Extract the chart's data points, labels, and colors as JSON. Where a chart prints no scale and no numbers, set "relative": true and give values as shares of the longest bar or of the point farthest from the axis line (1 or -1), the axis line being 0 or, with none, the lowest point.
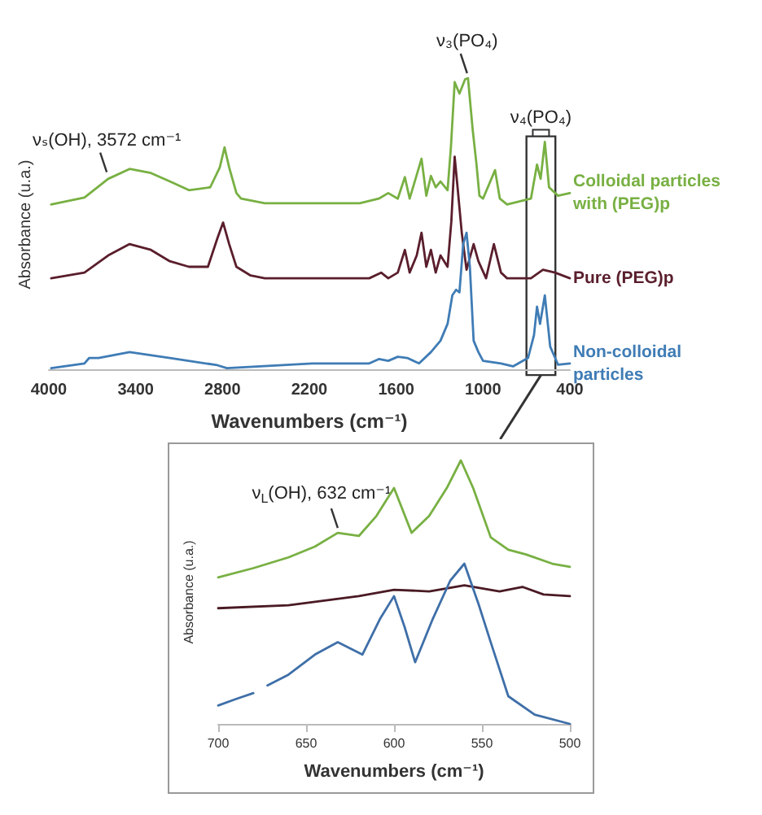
{
  "chart_data": [
    {
      "type": "line",
      "xlabel": "Wavenumbers (cm⁻¹)",
      "ylabel": "Absorbance (u.a.)",
      "relative": true,
      "xlim": [
        4000,
        400
      ],
      "xticks": [
        4000,
        3400,
        2800,
        2200,
        1600,
        1000,
        400
      ],
      "grid": false,
      "legend": false,
      "marker": "none",
      "annotations": [
        {
          "text": "νₛ(OH), 3572 cm⁻¹",
          "x": 3600,
          "y": 0.66
        },
        {
          "text": "ν₃(PO₄)",
          "x": 1110,
          "y": 1.0
        },
        "ν₄(PO₄)"
      ],
      "series": [
        {
          "name": "Colloidal particles with (PEG)p",
          "color": "#78b043",
          "x": [
            3984,
            3754,
            3590,
            3442,
            3295,
            3164,
            3032,
            2885,
            2819,
            2786,
            2754,
            2704,
            2672,
            2508,
            1852,
            1720,
            1655,
            1589,
            1540,
            1507,
            1425,
            1392,
            1360,
            1327,
            1294,
            1245,
            1222,
            1196,
            1163,
            1124,
            1104,
            1071,
            1045,
            1025,
            1000,
            917,
            884,
            834,
            669,
            627,
            602,
            573,
            544,
            482,
            400
          ],
          "values": [
            0.566,
            0.59,
            0.654,
            0.688,
            0.674,
            0.645,
            0.615,
            0.625,
            0.693,
            0.762,
            0.693,
            0.605,
            0.586,
            0.57,
            0.57,
            0.586,
            0.605,
            0.586,
            0.66,
            0.586,
            0.723,
            0.596,
            0.664,
            0.625,
            0.645,
            0.615,
            0.762,
            0.986,
            0.947,
            0.996,
            1.0,
            0.82,
            0.703,
            0.596,
            0.586,
            0.684,
            0.586,
            0.566,
            0.586,
            0.703,
            0.654,
            0.781,
            0.625,
            0.596,
            0.605
          ]
        },
        {
          "name": "Pure (PEG)p",
          "color": "#5a1e2c",
          "x": [
            3984,
            3754,
            3590,
            3442,
            3295,
            3164,
            3032,
            2901,
            2836,
            2796,
            2754,
            2704,
            2606,
            2508,
            1786,
            1704,
            1655,
            1589,
            1540,
            1507,
            1458,
            1425,
            1392,
            1360,
            1327,
            1294,
            1245,
            1219,
            1196,
            1176,
            1147,
            1114,
            1065,
            1032,
            979,
            925,
            876,
            834,
            669,
            586,
            503,
            400
          ],
          "values": [
            0.3125,
            0.332,
            0.391,
            0.43,
            0.41,
            0.371,
            0.352,
            0.352,
            0.449,
            0.504,
            0.43,
            0.352,
            0.322,
            0.3125,
            0.3125,
            0.332,
            0.3125,
            0.332,
            0.41,
            0.332,
            0.391,
            0.469,
            0.352,
            0.41,
            0.332,
            0.391,
            0.352,
            0.508,
            0.73,
            0.625,
            0.469,
            0.342,
            0.43,
            0.371,
            0.3125,
            0.43,
            0.332,
            0.3125,
            0.3125,
            0.342,
            0.332,
            0.3125
          ]
        },
        {
          "name": "Non-colloidal particles",
          "color": "#3f7cb5",
          "x": [
            3984,
            3754,
            3721,
            3656,
            3442,
            3164,
            2836,
            2770,
            2180,
            1786,
            1720,
            1655,
            1589,
            1524,
            1442,
            1360,
            1294,
            1245,
            1212,
            1186,
            1163,
            1137,
            1114,
            1091,
            1065,
            1032,
            1000,
            876,
            793,
            689,
            648,
            627,
            606,
            573,
            536,
            482,
            400
          ],
          "values": [
            0.004,
            0.02,
            0.039,
            0.039,
            0.059,
            0.039,
            0.014,
            0.004,
            0.02,
            0.02,
            0.035,
            0.029,
            0.043,
            0.039,
            0.02,
            0.059,
            0.098,
            0.156,
            0.254,
            0.273,
            0.264,
            0.43,
            0.469,
            0.352,
            0.098,
            0.059,
            0.029,
            0.02,
            0.01,
            0.039,
            0.117,
            0.215,
            0.156,
            0.254,
            0.078,
            0.016,
            0.02
          ]
        }
      ]
    },
    {
      "type": "line",
      "xlabel": "Wavenumbers (cm⁻¹)",
      "ylabel": "Absorbance (u.a.)",
      "relative": true,
      "xlim": [
        700,
        500
      ],
      "xticks": [
        700,
        650,
        600,
        550,
        500
      ],
      "grid": false,
      "legend": false,
      "marker": "none",
      "annotations": [
        {
          "text": "ν$_{L}$(OH), 632 cm⁻¹",
          "x": 632,
          "y": 0.725
        }
      ],
      "series": [
        {
          "color": "#78b043",
          "x": [
            700,
            680,
            660,
            645,
            632,
            620,
            610,
            600,
            590,
            580,
            570,
            562,
            555,
            545,
            535,
            525,
            510,
            500
          ],
          "values": [
            0.556,
            0.591,
            0.632,
            0.673,
            0.725,
            0.713,
            0.789,
            0.895,
            0.725,
            0.789,
            0.895,
            1.0,
            0.895,
            0.708,
            0.661,
            0.643,
            0.608,
            0.596
          ]
        },
        {
          "color": "#4a1a24",
          "x": [
            700,
            660,
            620,
            600,
            580,
            560,
            540,
            527,
            515,
            500
          ],
          "values": [
            0.439,
            0.45,
            0.485,
            0.509,
            0.503,
            0.526,
            0.503,
            0.52,
            0.491,
            0.485
          ]
        },
        {
          "color": "#3f6fa8",
          "x": [
            700,
            690,
            680,
            676,
            672,
            660,
            645,
            632,
            618,
            608,
            600,
            594,
            588,
            578,
            568,
            560,
            552,
            545,
            535,
            520,
            500
          ],
          "values": [
            0.07,
            0.094,
            0.117,
            null,
            0.146,
            0.187,
            0.263,
            0.31,
            0.263,
            0.398,
            0.485,
            0.368,
            0.234,
            0.398,
            0.544,
            0.608,
            0.456,
            0.31,
            0.105,
            0.035,
            0
          ]
        }
      ]
    }
  ]
}
